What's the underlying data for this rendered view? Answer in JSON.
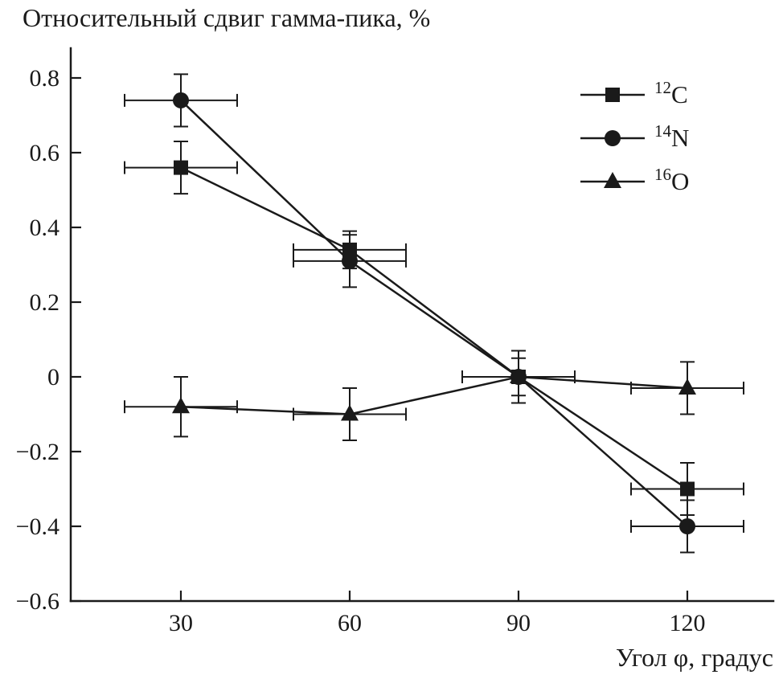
{
  "chart_data": {
    "type": "line",
    "title": "Относительный сдвиг гамма-пика, %",
    "xlabel": "Угол φ, градус",
    "ylabel": "",
    "x": [
      30,
      60,
      90,
      120
    ],
    "xticks": [
      30,
      60,
      90,
      120
    ],
    "yticks": [
      -0.6,
      -0.4,
      -0.2,
      0,
      0.2,
      0.4,
      0.6,
      0.8
    ],
    "xlim": [
      10,
      135
    ],
    "ylim": [
      -0.6,
      0.88
    ],
    "grid": false,
    "legend_position": "top-right",
    "series": [
      {
        "name": "12C",
        "label_sup": "12",
        "label_main": "C",
        "marker": "square",
        "values": [
          0.56,
          0.34,
          0.0,
          -0.3
        ],
        "yerr": [
          0.07,
          0.05,
          0.07,
          0.07
        ],
        "xerr": [
          10,
          10,
          10,
          10
        ]
      },
      {
        "name": "14N",
        "label_sup": "14",
        "label_main": "N",
        "marker": "circle",
        "values": [
          0.74,
          0.31,
          0.0,
          -0.4
        ],
        "yerr": [
          0.07,
          0.07,
          0.07,
          0.07
        ],
        "xerr": [
          10,
          10,
          10,
          10
        ]
      },
      {
        "name": "16O",
        "label_sup": "16",
        "label_main": "O",
        "marker": "triangle",
        "values": [
          -0.08,
          -0.1,
          0.0,
          -0.03
        ],
        "yerr": [
          0.08,
          0.07,
          0.05,
          0.07
        ],
        "xerr": [
          10,
          10,
          10,
          10
        ]
      }
    ],
    "colors": {
      "foreground": "#1a1a1a",
      "background": "#ffffff"
    }
  }
}
